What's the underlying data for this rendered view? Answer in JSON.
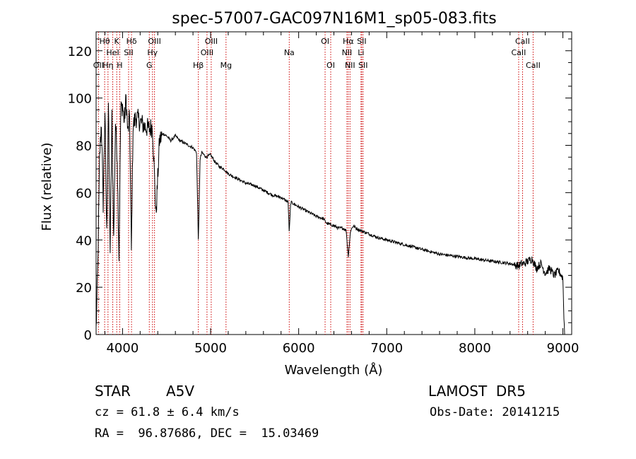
{
  "chart_data": {
    "type": "line",
    "title": "spec-57007-GAC097N16M1_sp05-083.fits",
    "xlabel": "Wavelength (Å)",
    "ylabel": "Flux (relative)",
    "xlim": [
      3700,
      9100
    ],
    "ylim": [
      0,
      128
    ],
    "xticks": [
      4000,
      5000,
      6000,
      7000,
      8000,
      9000
    ],
    "yticks": [
      0,
      20,
      40,
      60,
      80,
      100,
      120
    ],
    "grid": false,
    "line_color": "#000000",
    "marker_color": "#cc0000",
    "lines": [
      {
        "label": "OII",
        "wavelength": 3727,
        "row": 2
      },
      {
        "label": "Hθ",
        "wavelength": 3797,
        "row": 0
      },
      {
        "label": "Hη",
        "wavelength": 3835,
        "row": 2
      },
      {
        "label": "HeI",
        "wavelength": 3889,
        "row": 1
      },
      {
        "label": "K",
        "wavelength": 3934,
        "row": 0
      },
      {
        "label": "H",
        "wavelength": 3968,
        "row": 2
      },
      {
        "label": "SII",
        "wavelength": 4069,
        "row": 1
      },
      {
        "label": "Hδ",
        "wavelength": 4102,
        "row": 0
      },
      {
        "label": "G",
        "wavelength": 4304,
        "row": 2
      },
      {
        "label": "Hγ",
        "wavelength": 4340,
        "row": 1
      },
      {
        "label": "OIII",
        "wavelength": 4363,
        "row": 0
      },
      {
        "label": "Hβ",
        "wavelength": 4861,
        "row": 2
      },
      {
        "label": "OIII",
        "wavelength": 4959,
        "row": 1
      },
      {
        "label": "OIII",
        "wavelength": 5007,
        "row": 0
      },
      {
        "label": "Mg",
        "wavelength": 5175,
        "row": 2
      },
      {
        "label": "Na",
        "wavelength": 5893,
        "row": 1
      },
      {
        "label": "OI",
        "wavelength": 6300,
        "row": 0
      },
      {
        "label": "OI",
        "wavelength": 6364,
        "row": 2
      },
      {
        "label": "NII",
        "wavelength": 6548,
        "row": 1
      },
      {
        "label": "Hα",
        "wavelength": 6563,
        "row": 0
      },
      {
        "label": "NII",
        "wavelength": 6583,
        "row": 2
      },
      {
        "label": "Li",
        "wavelength": 6708,
        "row": 1
      },
      {
        "label": "SII",
        "wavelength": 6716,
        "row": 0
      },
      {
        "label": "SII",
        "wavelength": 6731,
        "row": 2
      },
      {
        "label": "CaII",
        "wavelength": 8498,
        "row": 1
      },
      {
        "label": "CaII",
        "wavelength": 8542,
        "row": 0
      },
      {
        "label": "CaII",
        "wavelength": 8662,
        "row": 2
      }
    ],
    "series": [
      {
        "x": [
          3700,
          3720,
          3740,
          3760,
          3780,
          3800,
          3820,
          3840,
          3860,
          3880,
          3900,
          3920,
          3940,
          3960,
          3980,
          4000,
          4020,
          4040,
          4060,
          4080,
          4100,
          4120,
          4150,
          4200,
          4250,
          4300,
          4340,
          4380,
          4420,
          4460,
          4500,
          4550,
          4600,
          4650,
          4700,
          4750,
          4800,
          4840,
          4861,
          4880,
          4900,
          4950,
          5000,
          5050,
          5100,
          5150,
          5200,
          5250,
          5300,
          5400,
          5500,
          5600,
          5700,
          5800,
          5880,
          5893,
          5910,
          6000,
          6100,
          6200,
          6280,
          6300,
          6320,
          6400,
          6450,
          6500,
          6540,
          6563,
          6590,
          6620,
          6650,
          6700,
          6800,
          6900,
          7000,
          7100,
          7200,
          7300,
          7400,
          7500,
          7600,
          7700,
          7800,
          7900,
          8000,
          8100,
          8200,
          8300,
          8400,
          8450,
          8500,
          8530,
          8560,
          8600,
          8650,
          8700,
          8750,
          8800,
          8850,
          8900,
          8950,
          9000,
          9010,
          9020
        ],
        "y": [
          2,
          30,
          75,
          90,
          55,
          95,
          42,
          98,
          35,
          92,
          40,
          90,
          75,
          33,
          95,
          97,
          90,
          100,
          85,
          92,
          35,
          88,
          92,
          90,
          88,
          87,
          88,
          50,
          82,
          85,
          84,
          82,
          84,
          82,
          81,
          80,
          79,
          77,
          39,
          74,
          77,
          75,
          76,
          73,
          71,
          70,
          68,
          67,
          66,
          64,
          63,
          61,
          59,
          58,
          56,
          43,
          56,
          54,
          52,
          50,
          49,
          48,
          47,
          46,
          45,
          45,
          44,
          33,
          44,
          46,
          45,
          44,
          42.5,
          41,
          40,
          39,
          38,
          37,
          36,
          35,
          34,
          33.5,
          33,
          32.5,
          32,
          31.5,
          31,
          30.5,
          30,
          29.5,
          29,
          30,
          30,
          31,
          32,
          28,
          30,
          26,
          28,
          25,
          27,
          24,
          10,
          0
        ]
      }
    ]
  },
  "info": {
    "object_type": "STAR",
    "subclass": "A5V",
    "survey": "LAMOST  DR5",
    "redshift": "cz = 61.8 ± 6.4 km/s",
    "obs_date": "Obs-Date: 20141215",
    "coords": "RA =  96.87686, DEC =  15.03469"
  }
}
